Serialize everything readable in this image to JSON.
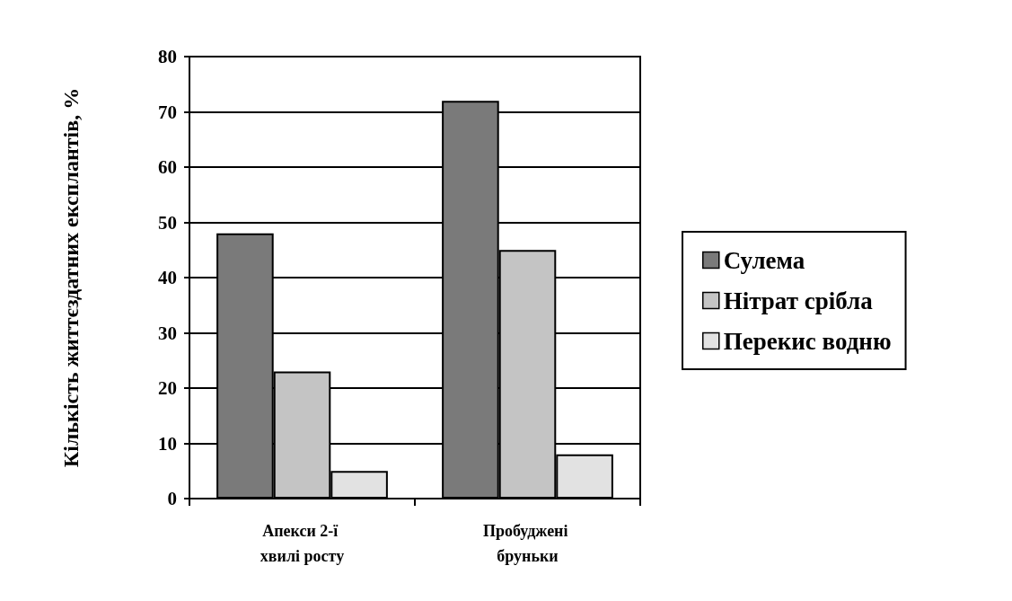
{
  "chart_data": {
    "type": "bar",
    "ylabel": "Кількість життєздатних експлантів, %",
    "categories": [
      "Апекси 2-ї хвилі росту",
      "Пробуджені бруньки"
    ],
    "series": [
      {
        "name": "Сулема",
        "color": "#7a7a7a",
        "values": [
          48,
          72
        ]
      },
      {
        "name": "Нітрат срібла",
        "color": "#c4c4c4",
        "values": [
          23,
          45
        ]
      },
      {
        "name": "Перекис водню",
        "color": "#e2e2e2",
        "values": [
          5,
          8
        ]
      }
    ],
    "ylim": [
      0,
      80
    ],
    "yticks": [
      0,
      10,
      20,
      30,
      40,
      50,
      60,
      70,
      80
    ],
    "grid": "y",
    "legend": "right"
  }
}
